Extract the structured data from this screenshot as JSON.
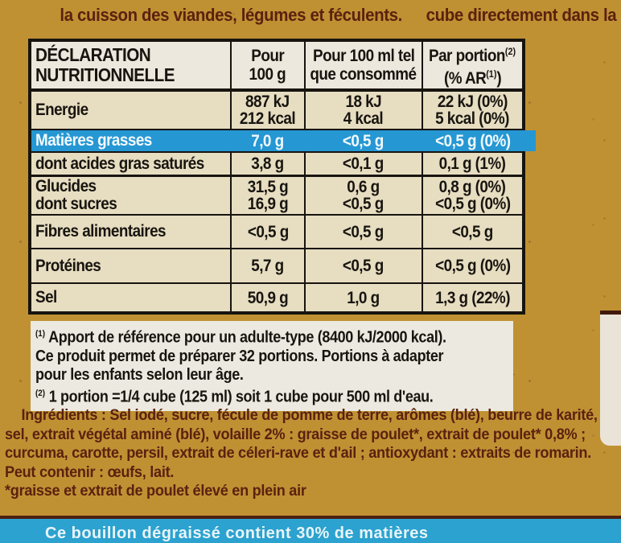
{
  "colors": {
    "background_mustard": "#c09133",
    "table_cream": "#e7ddc1",
    "table_header_bg": "#ece8dd",
    "table_line": "#17140f",
    "highlight_blue": "#2597d3",
    "band_blue": "#2ba2cf",
    "band_border": "#4c1f10",
    "footnote_bg": "#ece9e0",
    "text_dark": "#181510",
    "text_brown": "#5a220f"
  },
  "top_strip": {
    "left_text": "la cuisson des viandes, légumes et féculents.",
    "right_text": "cube directement dans la"
  },
  "nutrition_table": {
    "header": {
      "title_line1": "DÉCLARATION",
      "title_line2": "NUTRITIONNELLE",
      "col2_line1": "Pour",
      "col2_line2": "100 g",
      "col3_line1": "Pour 100 ml tel",
      "col3_line2": "que consommé",
      "col4_line1": "Par portion",
      "col4_sup": "(2)",
      "col4_line2_pre": "(% AR",
      "col4_line2_sup": "(1)",
      "col4_line2_post": ")"
    },
    "rows": [
      {
        "label": "Energie",
        "values": [
          [
            "887 kJ",
            "212 kcal"
          ],
          [
            "18 kJ",
            "4 kcal"
          ],
          [
            "22 kJ (0%)",
            "5 kcal (0%)"
          ]
        ]
      },
      {
        "label": "Matières grasses",
        "highlighted": true,
        "values": [
          [
            "7,0 g"
          ],
          [
            "<0,5 g"
          ],
          [
            "<0,5 g (0%)"
          ]
        ]
      },
      {
        "label": "dont acides gras saturés",
        "values": [
          [
            "3,8 g"
          ],
          [
            "<0,1 g"
          ],
          [
            "0,1 g (1%)"
          ]
        ]
      },
      {
        "label": "Glucides",
        "label2": "dont sucres",
        "values": [
          [
            "31,5 g",
            "16,9 g"
          ],
          [
            "0,6 g",
            "<0,5 g"
          ],
          [
            "0,8 g (0%)",
            "<0,5 g (0%)"
          ]
        ]
      },
      {
        "label": "Fibres alimentaires",
        "values": [
          [
            "<0,5 g"
          ],
          [
            "<0,5 g"
          ],
          [
            "<0,5 g"
          ]
        ]
      },
      {
        "label": "Protéines",
        "values": [
          [
            "5,7 g"
          ],
          [
            "<0,5 g"
          ],
          [
            "<0,5 g (0%)"
          ]
        ]
      },
      {
        "label": "Sel",
        "values": [
          [
            "50,9 g"
          ],
          [
            "1,0 g"
          ],
          [
            "1,3 g (22%)"
          ]
        ]
      }
    ]
  },
  "footnotes": {
    "sup1": "(1)",
    "line1": " Apport de référence pour un adulte-type (8400 kJ/2000 kcal).",
    "line2": "Ce produit permet de préparer 32 portions. Portions à adapter",
    "line3": "pour les enfants selon leur âge.",
    "sup2": "(2)",
    "line4": " 1 portion =1/4 cube (125 ml) soit 1 cube pour 500 ml d'eau."
  },
  "ingredients": {
    "segments": [
      {
        "t": "Ingrédients : "
      },
      {
        "t": "Sel iodé, sucre, fécule de pomme de terre, arômes ("
      },
      {
        "t": "blé"
      },
      {
        "t": "), beurre de karité,"
      },
      {
        "t": "sel, extrait végétal aminé ("
      },
      {
        "t": "blé"
      },
      {
        "t": "), volaille 2% : graisse de poulet*, extrait de poulet* 0,8% ;"
      },
      {
        "t": "curcuma, carotte, persil, extrait de "
      },
      {
        "t": "céleri"
      },
      {
        "t": "-rave et d'ail ; antioxydant : extraits de romarin."
      },
      {
        "t": "Peut contenir : "
      },
      {
        "t": "œufs, lait."
      },
      {
        "t": "*graisse et extrait de poulet élevé en plein air"
      }
    ]
  },
  "bottom_band": {
    "text": "Ce bouillon dégraissé contient 30% de matières"
  }
}
